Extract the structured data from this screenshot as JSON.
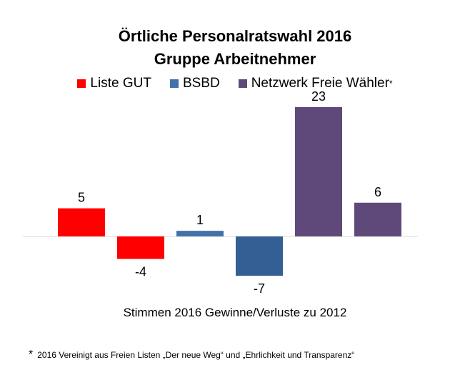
{
  "chart_data": {
    "type": "bar",
    "title": [
      "Örtliche Personalratswahl 2016",
      "Gruppe Arbeitnehmer"
    ],
    "xlabel": "Stimmen 2016 Gewinne/Verluste zu 2012",
    "ylabel": "",
    "legend": [
      {
        "name": "Liste GUT",
        "color": "#ff0000",
        "marker": ""
      },
      {
        "name": "BSBD",
        "color": "#4372a8",
        "marker": ""
      },
      {
        "name": "Netzwerk Freie Wähler",
        "color": "#5f497a",
        "marker": "*"
      }
    ],
    "legend_position": "top-center",
    "bars": [
      {
        "series": "Liste GUT",
        "value": 5,
        "label": "5",
        "color": "#ff0000"
      },
      {
        "series": "Liste GUT",
        "value": -4,
        "label": "-4",
        "color": "#ff0000"
      },
      {
        "series": "BSBD",
        "value": 1,
        "label": "1",
        "color": "#4372a8"
      },
      {
        "series": "BSBD",
        "value": -7,
        "label": "-7",
        "color": "#335f94"
      },
      {
        "series": "Netzwerk Freie Wähler",
        "value": 23,
        "label": "23",
        "color": "#5f497a"
      },
      {
        "series": "Netzwerk Freie Wähler",
        "value": 6,
        "label": "6",
        "color": "#5f497a"
      }
    ],
    "ylim": [
      -8,
      23
    ],
    "grid": false
  },
  "footnote": {
    "marker": "*",
    "text": "2016 Vereinigt aus Freien Listen „Der neue Weg“ und „Ehrlichkeit und Transparenz“"
  }
}
